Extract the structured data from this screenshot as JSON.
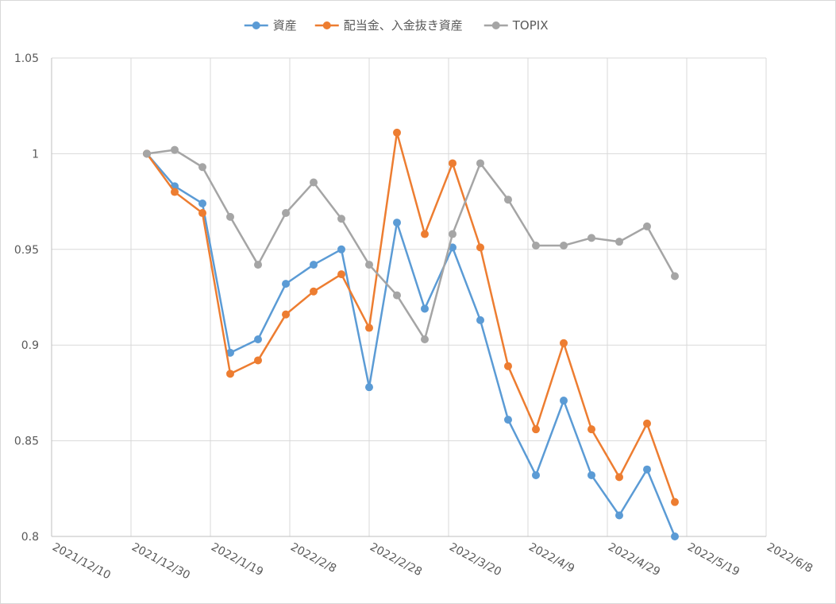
{
  "chart_data": {
    "type": "line",
    "title": "",
    "xlabel": "",
    "ylabel": "",
    "legend_position": "top",
    "grid": true,
    "xlim": [
      "2021-12-10",
      "2022-06-08"
    ],
    "ylim": [
      0.8,
      1.05
    ],
    "x_ticks": [
      "2021/12/10",
      "2021/12/30",
      "2022/1/19",
      "2022/2/8",
      "2022/2/28",
      "2022/3/20",
      "2022/4/9",
      "2022/4/29",
      "2022/5/19",
      "2022/6/8"
    ],
    "y_ticks": [
      "0.8",
      "0.85",
      "0.9",
      "0.95",
      "1",
      "1.05"
    ],
    "x": [
      "2022-01-03",
      "2022-01-10",
      "2022-01-17",
      "2022-01-24",
      "2022-01-31",
      "2022-02-07",
      "2022-02-14",
      "2022-02-21",
      "2022-02-28",
      "2022-03-07",
      "2022-03-14",
      "2022-03-21",
      "2022-03-28",
      "2022-04-04",
      "2022-04-11",
      "2022-04-18",
      "2022-04-25",
      "2022-05-02",
      "2022-05-09",
      "2022-05-16"
    ],
    "series": [
      {
        "name": "資産",
        "color": "#5b9bd5",
        "values": [
          1.0,
          0.983,
          0.974,
          0.896,
          0.903,
          0.932,
          0.942,
          0.95,
          0.878,
          0.964,
          0.919,
          0.951,
          0.913,
          0.861,
          0.832,
          0.871,
          0.832,
          0.811,
          0.835,
          0.8
        ]
      },
      {
        "name": "配当金、入金抜き資産",
        "color": "#ed7d31",
        "values": [
          1.0,
          0.98,
          0.969,
          0.885,
          0.892,
          0.916,
          0.928,
          0.937,
          0.909,
          1.011,
          0.958,
          0.995,
          0.951,
          0.889,
          0.856,
          0.901,
          0.856,
          0.831,
          0.859,
          0.818
        ]
      },
      {
        "name": "TOPIX",
        "color": "#a5a5a5",
        "values": [
          1.0,
          1.002,
          0.993,
          0.967,
          0.942,
          0.969,
          0.985,
          0.966,
          0.942,
          0.926,
          0.903,
          0.958,
          0.995,
          0.976,
          0.952,
          0.952,
          0.956,
          0.954,
          0.962,
          0.936
        ]
      }
    ]
  }
}
